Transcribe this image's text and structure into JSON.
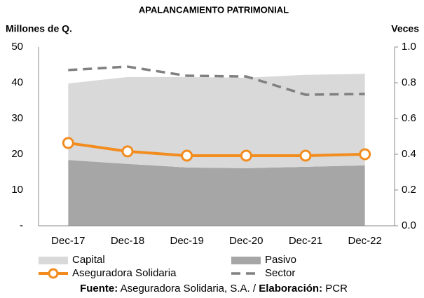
{
  "chart_data": {
    "type": "combo",
    "title": "APALANCAMIENTO PATRIMONIAL",
    "ylabel": "Millones de Q.",
    "y2label": "Veces",
    "categories": [
      "Dec-17",
      "Dec-18",
      "Dec-19",
      "Dec-20",
      "Dec-21",
      "Dec-22"
    ],
    "stacked": true,
    "series": [
      {
        "name": "Capital",
        "type": "area",
        "color": "#d9d9d9",
        "values": [
          21.4,
          24.3,
          25.3,
          25.3,
          25.7,
          25.6
        ]
      },
      {
        "name": "Pasivo",
        "type": "area",
        "color": "#a6a6a6",
        "values": [
          18.4,
          17.3,
          16.3,
          16.1,
          16.5,
          16.9
        ]
      },
      {
        "name": "Aseguradora Solidaria",
        "type": "line",
        "axis": "y2",
        "color": "#f28c1e",
        "markers": true,
        "values": [
          0.463,
          0.416,
          0.392,
          0.392,
          0.392,
          0.4
        ]
      },
      {
        "name": "Sector",
        "type": "line",
        "axis": "y2",
        "color": "#808080",
        "dashed": true,
        "values": [
          0.871,
          0.89,
          0.839,
          0.835,
          0.733,
          0.737
        ]
      }
    ],
    "ylim": [
      0,
      50
    ],
    "yticks": [
      {
        "value": 0,
        "label": "-"
      },
      10,
      20,
      30,
      40,
      50
    ],
    "y2lim": [
      0,
      1
    ],
    "y2ticks": [
      {
        "value": 0,
        "label": "0.0"
      },
      {
        "value": 0.2,
        "label": "0.2"
      },
      {
        "value": 0.4,
        "label": "0.4"
      },
      {
        "value": 0.6,
        "label": "0.6"
      },
      {
        "value": 0.8,
        "label": "0.8"
      },
      {
        "value": 1,
        "label": "1.0"
      }
    ],
    "grid": false,
    "source_label": "Fuente:",
    "source": "Aseguradora Solidaria, S.A. /",
    "credit_label": "Elaboración:",
    "credit": "PCR"
  }
}
